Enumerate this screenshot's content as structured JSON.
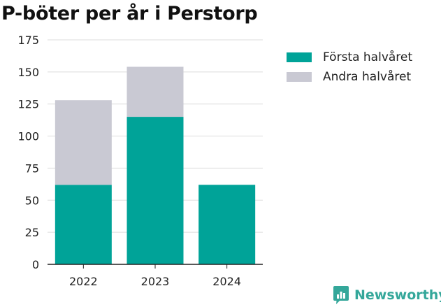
{
  "colors": {
    "first_half": "#00a398",
    "second_half": "#c9c9d3",
    "grid": "#dddddd",
    "axis": "#222222",
    "brand": "#34a79a"
  },
  "chart_data": {
    "type": "bar",
    "stacked": true,
    "title": "P-böter per år i Perstorp",
    "categories": [
      "2022",
      "2023",
      "2024"
    ],
    "series": [
      {
        "name": "Första halvåret",
        "values": [
          62,
          115,
          62
        ]
      },
      {
        "name": "Andra halvåret",
        "values": [
          66,
          39,
          0
        ]
      }
    ],
    "ylim": [
      0,
      175
    ],
    "yticks": [
      0,
      25,
      50,
      75,
      100,
      125,
      150,
      175
    ],
    "xlabel": "",
    "ylabel": "",
    "grid": true,
    "legend": "right"
  },
  "brand": {
    "name": "Newsworthy",
    "icon": "newsworthy-logo-icon"
  }
}
